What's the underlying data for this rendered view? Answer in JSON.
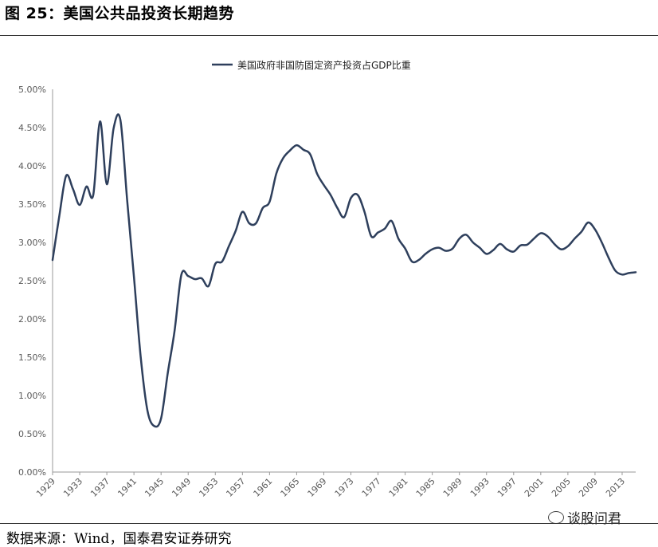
{
  "figure": {
    "title": "图 25：美国公共品投资长期趋势",
    "source": "数据来源：Wind，国泰君安证券研究",
    "watermark": "谈股问君",
    "watermark_icon": "wechat-icon"
  },
  "chart_data": {
    "type": "line",
    "title": "",
    "xlabel": "",
    "ylabel": "",
    "ylim": [
      0,
      5.0
    ],
    "xlim": [
      1929,
      2015
    ],
    "grid": false,
    "legend_position": "top-center",
    "y_ticks": [
      "0.00%",
      "0.50%",
      "1.00%",
      "1.50%",
      "2.00%",
      "2.50%",
      "3.00%",
      "3.50%",
      "4.00%",
      "4.50%",
      "5.00%"
    ],
    "x_ticks": [
      "1929",
      "1933",
      "1937",
      "1941",
      "1945",
      "1949",
      "1953",
      "1957",
      "1961",
      "1965",
      "1969",
      "1973",
      "1977",
      "1981",
      "1985",
      "1989",
      "1993",
      "1997",
      "2001",
      "2005",
      "2009",
      "2013"
    ],
    "series": [
      {
        "name": "美国政府非国防固定资产投资占GDP比重",
        "color": "#2e3f5c",
        "x": [
          1929,
          1930,
          1931,
          1932,
          1933,
          1934,
          1935,
          1936,
          1937,
          1938,
          1939,
          1940,
          1941,
          1942,
          1943,
          1944,
          1945,
          1946,
          1947,
          1948,
          1949,
          1950,
          1951,
          1952,
          1953,
          1954,
          1955,
          1956,
          1957,
          1958,
          1959,
          1960,
          1961,
          1962,
          1963,
          1964,
          1965,
          1966,
          1967,
          1968,
          1969,
          1970,
          1971,
          1972,
          1973,
          1974,
          1975,
          1976,
          1977,
          1978,
          1979,
          1980,
          1981,
          1982,
          1983,
          1984,
          1985,
          1986,
          1987,
          1988,
          1989,
          1990,
          1991,
          1992,
          1993,
          1994,
          1995,
          1996,
          1997,
          1998,
          1999,
          2000,
          2001,
          2002,
          2003,
          2004,
          2005,
          2006,
          2007,
          2008,
          2009,
          2010,
          2011,
          2012,
          2013,
          2014,
          2015
        ],
        "values": [
          2.77,
          3.35,
          3.87,
          3.7,
          3.49,
          3.73,
          3.62,
          4.58,
          3.76,
          4.49,
          4.6,
          3.55,
          2.55,
          1.5,
          0.8,
          0.6,
          0.7,
          1.3,
          1.85,
          2.58,
          2.56,
          2.52,
          2.53,
          2.43,
          2.72,
          2.75,
          2.95,
          3.15,
          3.4,
          3.25,
          3.25,
          3.45,
          3.53,
          3.9,
          4.1,
          4.2,
          4.27,
          4.21,
          4.15,
          3.9,
          3.75,
          3.62,
          3.45,
          3.33,
          3.58,
          3.62,
          3.4,
          3.08,
          3.13,
          3.18,
          3.28,
          3.05,
          2.92,
          2.75,
          2.77,
          2.85,
          2.91,
          2.93,
          2.89,
          2.92,
          3.05,
          3.1,
          3.0,
          2.93,
          2.85,
          2.9,
          2.98,
          2.91,
          2.88,
          2.96,
          2.97,
          3.05,
          3.12,
          3.08,
          2.98,
          2.91,
          2.95,
          3.05,
          3.14,
          3.26,
          3.17,
          3.0,
          2.8,
          2.63,
          2.58,
          2.6,
          2.61
        ]
      }
    ]
  }
}
